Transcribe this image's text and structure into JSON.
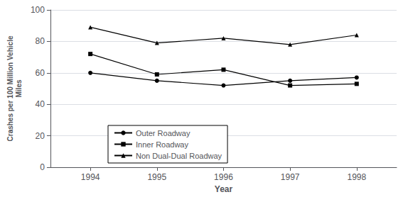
{
  "chart_data": {
    "type": "line",
    "x": [
      1994,
      1995,
      1996,
      1997,
      1998
    ],
    "series": [
      {
        "name": "Outer Roadway",
        "color": "#000000",
        "marker": "circle",
        "values": [
          60,
          55,
          52,
          55,
          57
        ]
      },
      {
        "name": "Inner Roadway",
        "color": "#000000",
        "marker": "square",
        "values": [
          72,
          59,
          62,
          52,
          53
        ]
      },
      {
        "name": "Non Dual-Dual Roadway",
        "color": "#000000",
        "marker": "triangle",
        "values": [
          89,
          79,
          82,
          78,
          84
        ]
      }
    ],
    "xlabel": "Year",
    "ylabel": "Crashes per 100 Million Vehicle\nMiles",
    "xlim": [
      1993.4,
      1998.6
    ],
    "xticks": [
      1994,
      1995,
      1996,
      1997,
      1998
    ],
    "ylim": [
      0,
      100
    ],
    "yticks": [
      0,
      20,
      40,
      60,
      80,
      100
    ],
    "grid": true,
    "legend": "lower left"
  }
}
